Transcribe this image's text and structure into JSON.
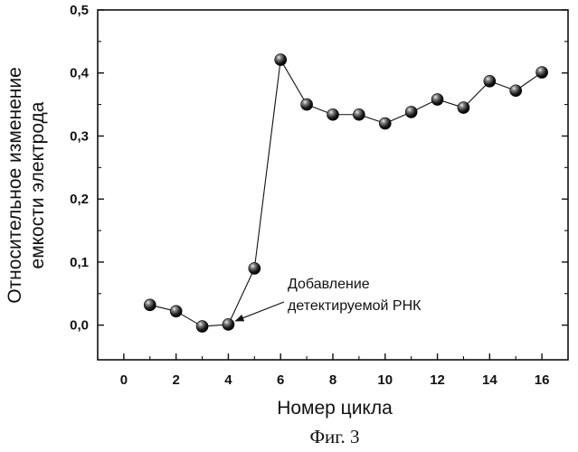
{
  "chart_data": {
    "type": "scatter",
    "title": "",
    "xlabel": "Номер цикла",
    "ylabel": [
      "Относительное изменение",
      "емкости электрода"
    ],
    "xlim": [
      -1,
      17
    ],
    "ylim": [
      -0.055,
      0.5
    ],
    "x_ticks": [
      0,
      2,
      4,
      6,
      8,
      10,
      12,
      14,
      16
    ],
    "x_tick_labels": [
      "0",
      "2",
      "4",
      "6",
      "8",
      "10",
      "12",
      "14",
      "16"
    ],
    "y_ticks": [
      0.0,
      0.1,
      0.2,
      0.3,
      0.4,
      0.5
    ],
    "y_tick_labels": [
      "0,0",
      "0,1",
      "0,2",
      "0,3",
      "0,4",
      "0,5"
    ],
    "grid": false,
    "connected": true,
    "series": [
      {
        "x": [
          1,
          2,
          3,
          4,
          5,
          6,
          7,
          8,
          9,
          10,
          11,
          12,
          13,
          14,
          15,
          16
        ],
        "y": [
          0.032,
          0.022,
          -0.002,
          0.001,
          0.09,
          0.421,
          0.35,
          0.334,
          0.334,
          0.32,
          0.338,
          0.358,
          0.345,
          0.387,
          0.372,
          0.401
        ]
      }
    ],
    "annotation": {
      "lines": [
        "Добавление",
        "детектируемой РНК"
      ],
      "target_x": 4,
      "target_y": 0.001
    }
  },
  "caption": "Фиг. 3"
}
